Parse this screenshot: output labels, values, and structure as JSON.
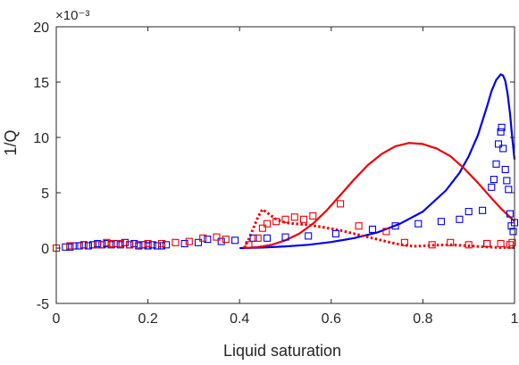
{
  "chart_data": {
    "type": "scatter",
    "title": "",
    "xlabel": "Liquid saturation",
    "ylabel": "1/Q",
    "xlim": [
      0,
      1
    ],
    "ylim": [
      -5,
      20
    ],
    "y_scale_label": "×10⁻³",
    "x_ticks": [
      {
        "v": 0,
        "label": "0"
      },
      {
        "v": 0.2,
        "label": "0.2"
      },
      {
        "v": 0.4,
        "label": "0.4"
      },
      {
        "v": 0.6,
        "label": "0.6"
      },
      {
        "v": 0.8,
        "label": "0.8"
      },
      {
        "v": 1,
        "label": "1"
      }
    ],
    "y_ticks": [
      {
        "v": -5,
        "label": "-5"
      },
      {
        "v": 0,
        "label": "0"
      },
      {
        "v": 5,
        "label": "5"
      },
      {
        "v": 10,
        "label": "10"
      },
      {
        "v": 15,
        "label": "15"
      },
      {
        "v": 20,
        "label": "20"
      }
    ],
    "grid": false,
    "colors": {
      "blue": "#0000ee",
      "red": "#ee0000",
      "axis": "#262626"
    },
    "series": [
      {
        "kind": "line",
        "style": "solid",
        "color": "#0000ee",
        "x": [
          0.4,
          0.45,
          0.5,
          0.55,
          0.6,
          0.65,
          0.7,
          0.75,
          0.8,
          0.85,
          0.88,
          0.9,
          0.92,
          0.94,
          0.95,
          0.96,
          0.97,
          0.975,
          0.98,
          0.985,
          0.99,
          0.995,
          1.0
        ],
        "y": [
          0,
          0.05,
          0.15,
          0.3,
          0.55,
          0.9,
          1.4,
          2.2,
          3.3,
          5.2,
          6.8,
          8.3,
          10.2,
          12.8,
          14.2,
          15.2,
          15.7,
          15.6,
          15.1,
          13.9,
          12.2,
          10.0,
          8.0
        ]
      },
      {
        "kind": "line",
        "style": "solid",
        "color": "#ee0000",
        "x": [
          0.41,
          0.44,
          0.47,
          0.5,
          0.53,
          0.56,
          0.59,
          0.62,
          0.65,
          0.68,
          0.71,
          0.74,
          0.77,
          0.8,
          0.83,
          0.86,
          0.89,
          0.92,
          0.95,
          0.97,
          0.985,
          1.0
        ],
        "y": [
          0,
          0.1,
          0.3,
          0.7,
          1.3,
          2.2,
          3.4,
          4.8,
          6.2,
          7.5,
          8.5,
          9.2,
          9.5,
          9.4,
          9.0,
          8.3,
          7.2,
          5.9,
          4.5,
          3.6,
          3.0,
          2.4
        ]
      },
      {
        "kind": "line",
        "style": "dotted",
        "color": "#ee0000",
        "x": [
          0.41,
          0.42,
          0.43,
          0.44,
          0.45,
          0.46,
          0.48,
          0.5,
          0.52,
          0.55,
          0.58,
          0.62,
          0.66,
          0.7,
          0.74,
          0.78,
          0.82,
          0.86,
          0.9,
          0.94,
          0.97,
          1.0
        ],
        "y": [
          0,
          0.8,
          1.8,
          2.8,
          3.5,
          3.2,
          2.6,
          2.3,
          2.2,
          2.1,
          1.9,
          1.6,
          1.2,
          0.8,
          0.4,
          0.15,
          0.25,
          0.3,
          0.2,
          0.1,
          0.05,
          0.05
        ]
      },
      {
        "kind": "markers",
        "color": "#0000ee",
        "points": [
          [
            0.02,
            0.1
          ],
          [
            0.03,
            0.1
          ],
          [
            0.04,
            0.2
          ],
          [
            0.05,
            0.2
          ],
          [
            0.06,
            0.3
          ],
          [
            0.07,
            0.2
          ],
          [
            0.08,
            0.3
          ],
          [
            0.09,
            0.4
          ],
          [
            0.1,
            0.3
          ],
          [
            0.11,
            0.4
          ],
          [
            0.12,
            0.3
          ],
          [
            0.13,
            0.4
          ],
          [
            0.14,
            0.3
          ],
          [
            0.15,
            0.5
          ],
          [
            0.16,
            0.3
          ],
          [
            0.17,
            0.4
          ],
          [
            0.18,
            0.2
          ],
          [
            0.19,
            0.3
          ],
          [
            0.2,
            0.2
          ],
          [
            0.21,
            0.3
          ],
          [
            0.22,
            0.2
          ],
          [
            0.23,
            0.2
          ],
          [
            0.24,
            0.3
          ],
          [
            0.28,
            0.4
          ],
          [
            0.31,
            0.5
          ],
          [
            0.33,
            0.8
          ],
          [
            0.36,
            0.6
          ],
          [
            0.39,
            0.7
          ],
          [
            0.43,
            0.9
          ],
          [
            0.46,
            0.9
          ],
          [
            0.5,
            1.0
          ],
          [
            0.55,
            1.1
          ],
          [
            0.61,
            1.3
          ],
          [
            0.69,
            1.7
          ],
          [
            0.74,
            2.0
          ],
          [
            0.79,
            2.2
          ],
          [
            0.84,
            2.4
          ],
          [
            0.88,
            2.6
          ],
          [
            0.9,
            3.3
          ],
          [
            0.93,
            3.4
          ],
          [
            0.94,
            0.4
          ],
          [
            0.95,
            5.5
          ],
          [
            0.955,
            6.2
          ],
          [
            0.96,
            7.6
          ],
          [
            0.965,
            9.4
          ],
          [
            0.97,
            10.5
          ],
          [
            0.972,
            10.9
          ],
          [
            0.975,
            9.0
          ],
          [
            0.98,
            7.1
          ],
          [
            0.983,
            6.1
          ],
          [
            0.987,
            5.3
          ],
          [
            0.99,
            3.1
          ],
          [
            0.993,
            2.0
          ],
          [
            0.997,
            1.5
          ],
          [
            1.0,
            2.3
          ]
        ]
      },
      {
        "kind": "markers",
        "color": "#ee0000",
        "points": [
          [
            0.0,
            0.0
          ],
          [
            0.03,
            0.2
          ],
          [
            0.06,
            0.3
          ],
          [
            0.09,
            0.3
          ],
          [
            0.11,
            0.5
          ],
          [
            0.12,
            0.4
          ],
          [
            0.14,
            0.4
          ],
          [
            0.16,
            0.3
          ],
          [
            0.18,
            0.3
          ],
          [
            0.2,
            0.4
          ],
          [
            0.23,
            0.4
          ],
          [
            0.26,
            0.5
          ],
          [
            0.29,
            0.6
          ],
          [
            0.32,
            0.9
          ],
          [
            0.35,
            1.0
          ],
          [
            0.37,
            0.8
          ],
          [
            0.42,
            0.3
          ],
          [
            0.44,
            0.9
          ],
          [
            0.45,
            1.8
          ],
          [
            0.46,
            2.2
          ],
          [
            0.48,
            2.4
          ],
          [
            0.5,
            2.6
          ],
          [
            0.52,
            2.8
          ],
          [
            0.54,
            2.6
          ],
          [
            0.56,
            2.9
          ],
          [
            0.62,
            4.0
          ],
          [
            0.66,
            2.0
          ],
          [
            0.72,
            1.5
          ],
          [
            0.76,
            0.5
          ],
          [
            0.82,
            0.3
          ],
          [
            0.86,
            0.5
          ],
          [
            0.9,
            0.3
          ],
          [
            0.94,
            0.4
          ],
          [
            0.97,
            0.4
          ],
          [
            0.99,
            0.3
          ],
          [
            0.995,
            0.5
          ]
        ]
      }
    ]
  }
}
